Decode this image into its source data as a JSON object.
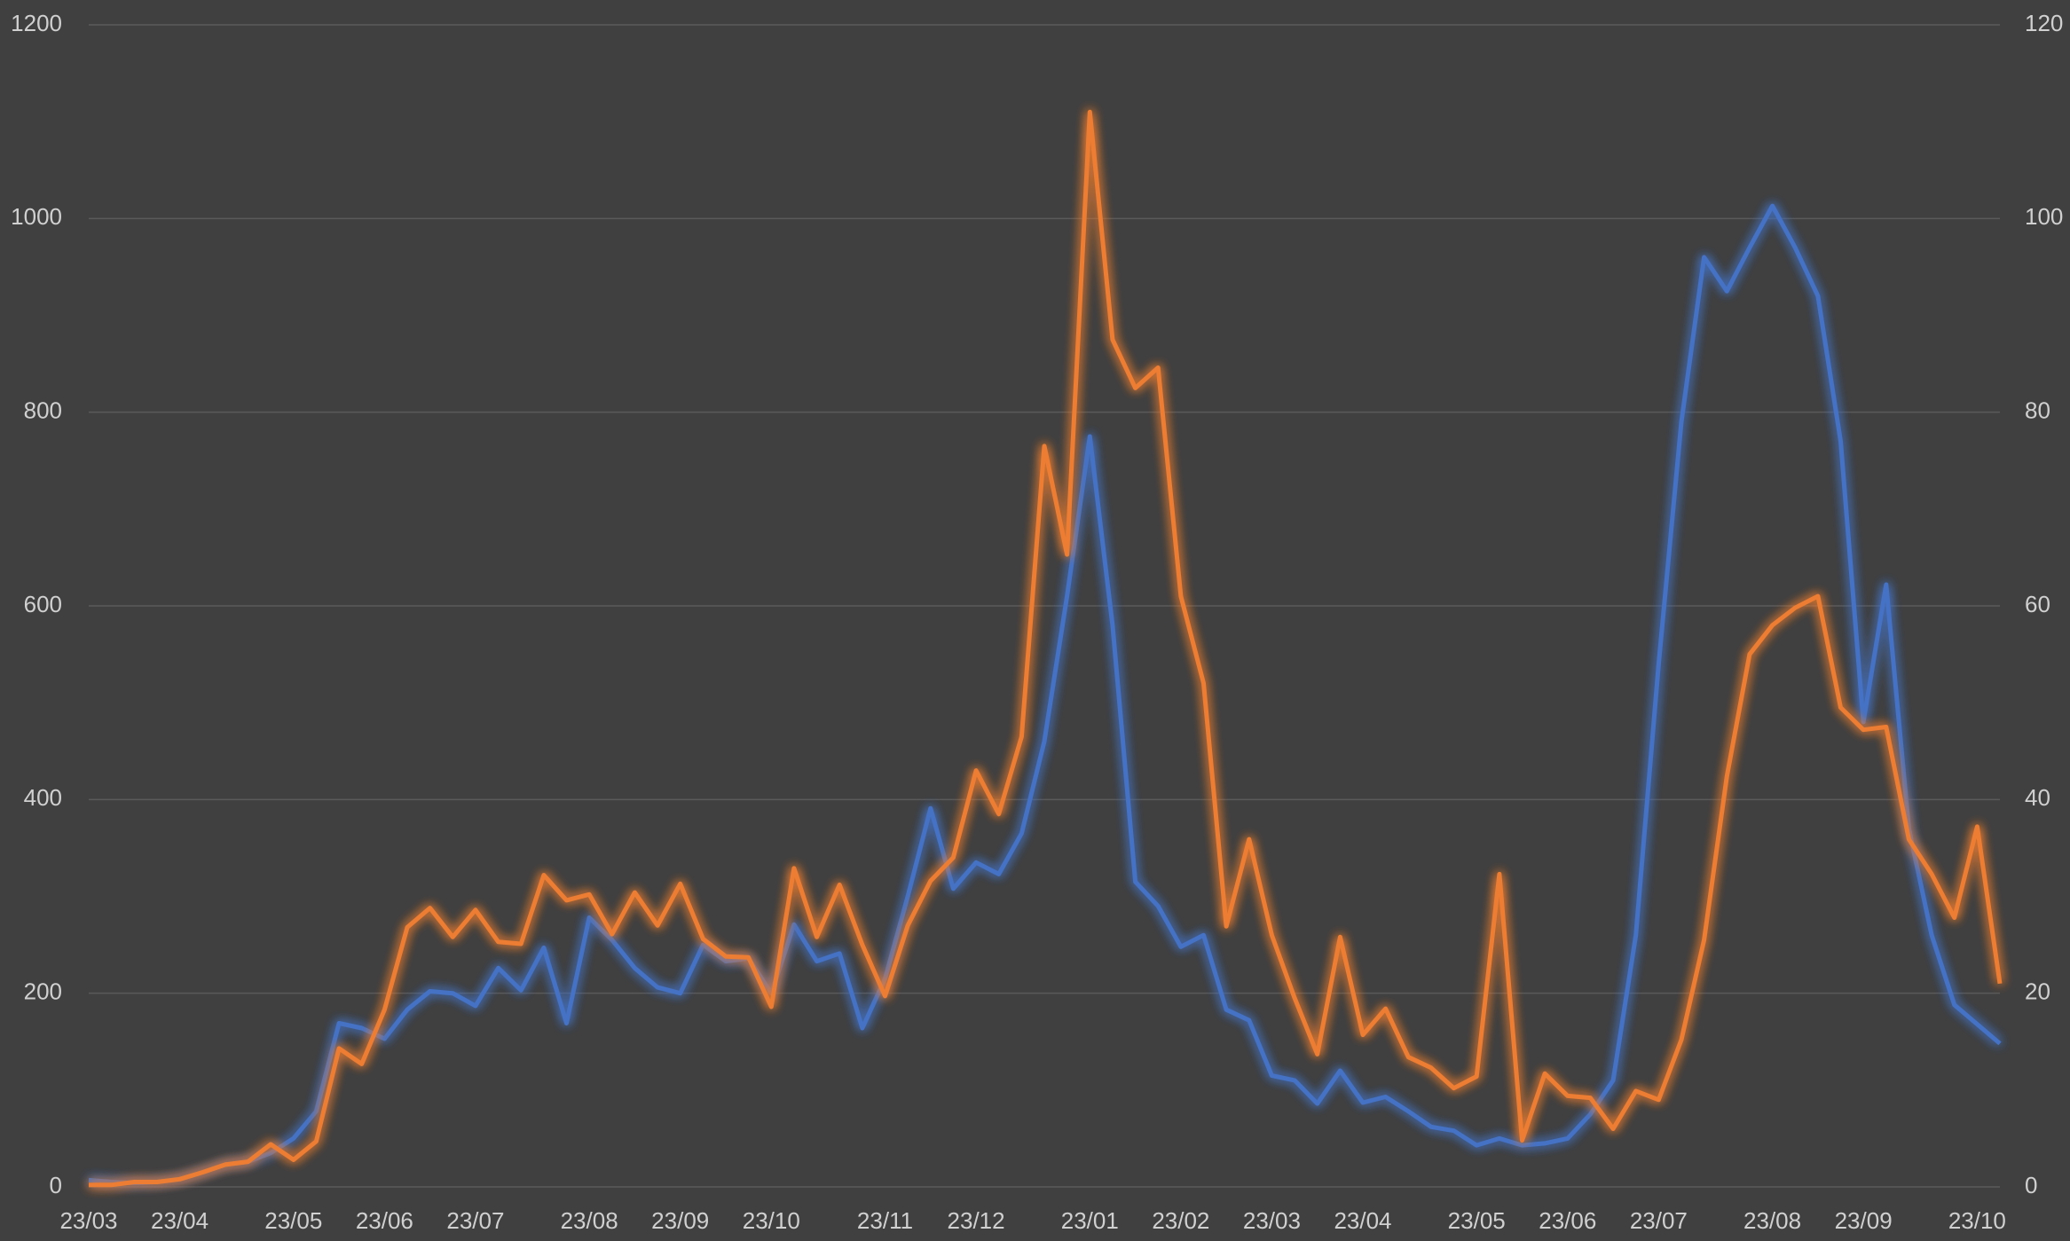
{
  "chart_data": {
    "type": "line",
    "background": "#404040",
    "grid": true,
    "categories": [
      "23/03",
      null,
      null,
      null,
      "23/04",
      null,
      null,
      null,
      null,
      "23/05",
      null,
      null,
      null,
      "23/06",
      null,
      null,
      null,
      "23/07",
      null,
      null,
      null,
      null,
      "23/08",
      null,
      null,
      null,
      "23/09",
      null,
      null,
      null,
      "23/10",
      null,
      null,
      null,
      null,
      "23/11",
      null,
      null,
      null,
      "23/12",
      null,
      null,
      null,
      null,
      "23/01",
      null,
      null,
      null,
      "23/02",
      null,
      null,
      null,
      "23/03",
      null,
      null,
      null,
      "23/04",
      null,
      null,
      null,
      null,
      "23/05",
      null,
      null,
      null,
      "23/06",
      null,
      null,
      null,
      "23/07",
      null,
      null,
      null,
      null,
      "23/08",
      null,
      null,
      null,
      "23/09",
      null,
      null,
      null,
      null,
      "23/10",
      null
    ],
    "ylim": [
      0,
      1200
    ],
    "yticks": [
      0,
      200,
      400,
      600,
      800,
      1000,
      1200
    ],
    "y2lim": [
      0,
      120
    ],
    "y2ticks": [
      0,
      20,
      40,
      60,
      80,
      100,
      120
    ],
    "series": [
      {
        "color": "#4472c4",
        "values": [
          7,
          5,
          4,
          5,
          8,
          15,
          23,
          26,
          35,
          50,
          78,
          169,
          164,
          153,
          183,
          202,
          200,
          187,
          226,
          203,
          247,
          169,
          278,
          255,
          226,
          206,
          200,
          250,
          233,
          236,
          200,
          271,
          233,
          241,
          164,
          215,
          300,
          391,
          308,
          335,
          323,
          365,
          460,
          610,
          775,
          580,
          315,
          290,
          248,
          260,
          183,
          172,
          115,
          110,
          86,
          120,
          87,
          93,
          78,
          62,
          58,
          43,
          50,
          43,
          45,
          50,
          75,
          110,
          260,
          540,
          790,
          960,
          925,
          970,
          1013,
          970,
          920,
          770,
          480,
          622,
          370,
          260,
          188,
          168,
          148
        ]
      },
      {
        "color": "#ed7d31",
        "axis": "y2",
        "values": [
          0.2,
          0.2,
          0.5,
          0.5,
          0.8,
          1.5,
          2.3,
          2.6,
          4.4,
          2.8,
          4.7,
          14.3,
          12.7,
          18.3,
          26.8,
          28.8,
          25.8,
          28.6,
          25.3,
          25.1,
          32.2,
          29.6,
          30.2,
          26.1,
          30.4,
          27,
          31.3,
          25.6,
          23.8,
          23.7,
          18.6,
          32.9,
          25.8,
          31.2,
          25,
          19.7,
          27,
          31.6,
          34,
          43,
          38.5,
          46.5,
          76.5,
          65.3,
          111,
          87.5,
          82.5,
          84.6,
          61,
          52,
          26.9,
          35.9,
          26,
          19.5,
          13.7,
          25.8,
          15.7,
          18.4,
          13.4,
          12.3,
          10.2,
          11.4,
          32.3,
          4.8,
          11.7,
          9.4,
          9.2,
          6,
          9.9,
          9,
          15.2,
          25.5,
          42.4,
          55,
          58,
          59.8,
          61,
          49.5,
          47.2,
          47.5,
          35.9,
          32.3,
          27.8,
          37.2,
          21
        ]
      }
    ]
  }
}
